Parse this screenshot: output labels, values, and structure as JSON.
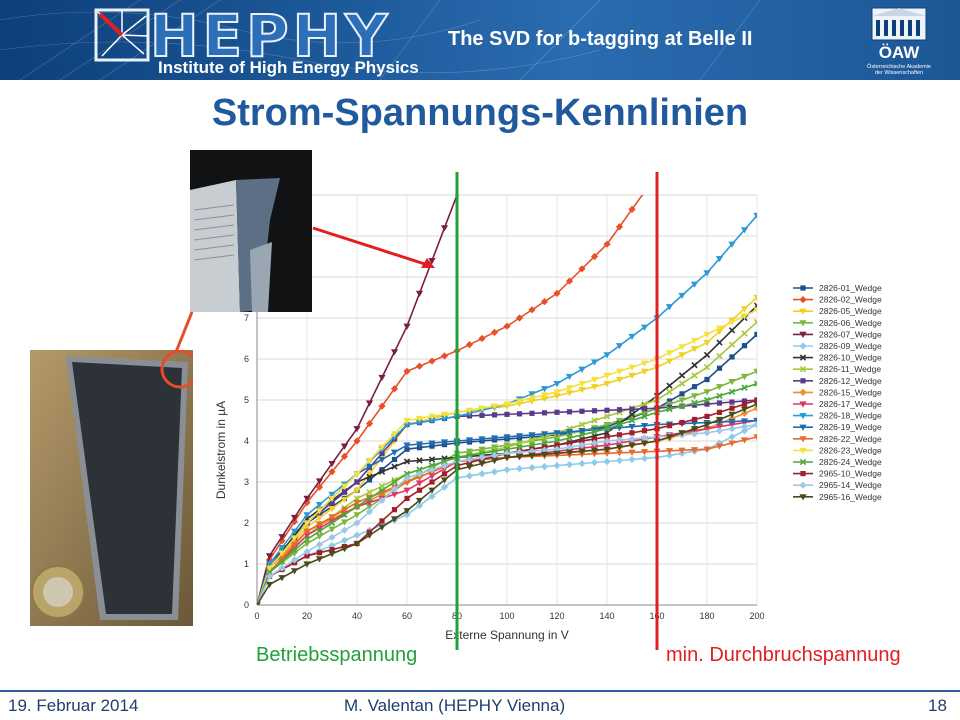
{
  "header": {
    "logo_text": "HEPHY",
    "logo_subtitle": "Institute of High Energy Physics",
    "title": "The SVD for b-tagging at Belle II",
    "oaw_name": "ÖAW",
    "oaw_sub1": "Österreichische Akademie",
    "oaw_sub2": "der Wissenschaften"
  },
  "slide": {
    "title": "Strom-Spannungs-Kennlinien"
  },
  "annotations": {
    "operating_voltage_label": "Betriebsspannung",
    "breakdown_voltage_label": "min. Durchbruchspannung",
    "operating_voltage_v": 80,
    "breakdown_voltage_v": 160,
    "operating_color": "#22a03a",
    "breakdown_color": "#e02020"
  },
  "chart_data": {
    "type": "line",
    "xlabel": "Externe Spannung in V",
    "ylabel": "Dunkelstrom in µA",
    "xlim": [
      0,
      200
    ],
    "ylim": [
      0,
      10
    ],
    "xticks": [
      0,
      20,
      40,
      60,
      80,
      100,
      120,
      140,
      160,
      180,
      200
    ],
    "yticks": [
      0,
      1,
      2,
      3,
      4,
      5,
      6,
      7
    ],
    "grid": true,
    "legend_position": "right",
    "x": [
      0,
      5,
      20,
      40,
      60,
      80,
      100,
      120,
      140,
      160,
      180,
      200
    ],
    "series": [
      {
        "name": "2826-01_Wedge",
        "color": "#1f4e8c",
        "marker": "square",
        "values": [
          0,
          1.0,
          2.0,
          2.8,
          3.8,
          3.95,
          4.05,
          4.15,
          4.35,
          4.8,
          5.5,
          6.6
        ]
      },
      {
        "name": "2826-02_Wedge",
        "color": "#e8502a",
        "marker": "diamond",
        "values": [
          0,
          1.1,
          2.5,
          4.0,
          5.7,
          6.2,
          6.8,
          7.6,
          8.8,
          10.5,
          null,
          null
        ]
      },
      {
        "name": "2826-05_Wedge",
        "color": "#f0d020",
        "marker": "triangle",
        "values": [
          0,
          0.9,
          1.9,
          2.8,
          4.4,
          4.7,
          4.85,
          5.1,
          5.4,
          5.8,
          6.4,
          7.5
        ]
      },
      {
        "name": "2826-06_Wedge",
        "color": "#7ab73a",
        "marker": "triangle",
        "values": [
          0,
          0.8,
          1.5,
          2.2,
          3.0,
          3.7,
          3.9,
          4.1,
          4.4,
          4.8,
          5.2,
          5.7
        ]
      },
      {
        "name": "2826-07_Wedge",
        "color": "#7a1f40",
        "marker": "triangle",
        "values": [
          0,
          1.2,
          2.6,
          4.3,
          6.8,
          10.0,
          null,
          null,
          null,
          null,
          null,
          null
        ]
      },
      {
        "name": "2826-09_Wedge",
        "color": "#8ecbea",
        "marker": "diamond",
        "values": [
          0,
          0.7,
          1.2,
          1.7,
          2.2,
          3.1,
          3.3,
          3.4,
          3.5,
          3.6,
          3.8,
          4.4
        ]
      },
      {
        "name": "2826-10_Wedge",
        "color": "#333333",
        "marker": "x",
        "values": [
          0,
          0.9,
          2.1,
          3.0,
          3.5,
          3.6,
          3.7,
          3.9,
          4.2,
          5.1,
          6.1,
          7.3
        ]
      },
      {
        "name": "2826-11_Wedge",
        "color": "#a6c83a",
        "marker": "x",
        "values": [
          0,
          0.8,
          1.7,
          2.6,
          3.2,
          3.6,
          3.85,
          4.2,
          4.6,
          5.0,
          5.8,
          6.9
        ]
      },
      {
        "name": "2826-12_Wedge",
        "color": "#5a3a8a",
        "marker": "square",
        "values": [
          0,
          0.9,
          2.0,
          3.0,
          4.4,
          4.6,
          4.65,
          4.7,
          4.75,
          4.8,
          4.9,
          5.0
        ]
      },
      {
        "name": "2826-15_Wedge",
        "color": "#f0902a",
        "marker": "diamond",
        "values": [
          0,
          0.9,
          1.8,
          2.4,
          3.0,
          3.5,
          3.6,
          3.7,
          3.8,
          4.0,
          4.3,
          4.8
        ]
      },
      {
        "name": "2826-17_Wedge",
        "color": "#d9376a",
        "marker": "triangle",
        "values": [
          0,
          0.8,
          1.7,
          2.4,
          2.8,
          3.5,
          3.6,
          3.75,
          3.9,
          4.1,
          4.3,
          4.5
        ]
      },
      {
        "name": "2826-18_Wedge",
        "color": "#2a9ad6",
        "marker": "triangle",
        "values": [
          0,
          1.0,
          2.2,
          3.2,
          4.4,
          4.6,
          4.9,
          5.4,
          6.1,
          7.0,
          8.1,
          9.5
        ]
      },
      {
        "name": "2826-19_Wedge",
        "color": "#1f6db0",
        "marker": "triangle",
        "values": [
          0,
          0.9,
          2.0,
          3.2,
          3.9,
          4.0,
          4.1,
          4.2,
          4.3,
          4.4,
          4.45,
          4.5
        ]
      },
      {
        "name": "2826-22_Wedge",
        "color": "#e86a2a",
        "marker": "triangle",
        "values": [
          0,
          0.8,
          1.8,
          2.5,
          3.0,
          3.5,
          3.6,
          3.65,
          3.7,
          3.75,
          3.8,
          4.1
        ]
      },
      {
        "name": "2826-23_Wedge",
        "color": "#f5e040",
        "marker": "triangle",
        "values": [
          0,
          0.9,
          2.0,
          3.2,
          4.5,
          4.7,
          4.9,
          5.2,
          5.6,
          6.0,
          6.6,
          7.2
        ]
      },
      {
        "name": "2826-24_Wedge",
        "color": "#4ca83a",
        "marker": "x",
        "values": [
          0,
          0.8,
          1.6,
          2.4,
          3.2,
          3.6,
          3.8,
          4.0,
          4.3,
          4.7,
          5.0,
          5.4
        ]
      },
      {
        "name": "2965-10_Wedge",
        "color": "#a01f2a",
        "marker": "square",
        "values": [
          0,
          0.7,
          1.2,
          1.5,
          2.6,
          3.4,
          3.7,
          3.9,
          4.1,
          4.3,
          4.6,
          5.0
        ]
      },
      {
        "name": "2965-14_Wedge",
        "color": "#9ec8e6",
        "marker": "diamond",
        "values": [
          0,
          0.7,
          1.3,
          2.0,
          3.1,
          3.5,
          3.7,
          3.8,
          4.0,
          4.1,
          4.2,
          4.4
        ]
      },
      {
        "name": "2965-16_Wedge",
        "color": "#4a4a1a",
        "marker": "triangle",
        "values": [
          0,
          0.5,
          1.0,
          1.5,
          2.3,
          3.3,
          3.6,
          3.7,
          3.8,
          4.0,
          4.4,
          4.9
        ]
      }
    ]
  },
  "footer": {
    "date": "19. Februar 2014",
    "author": "M. Valentan (HEPHY Vienna)",
    "page": "18"
  }
}
